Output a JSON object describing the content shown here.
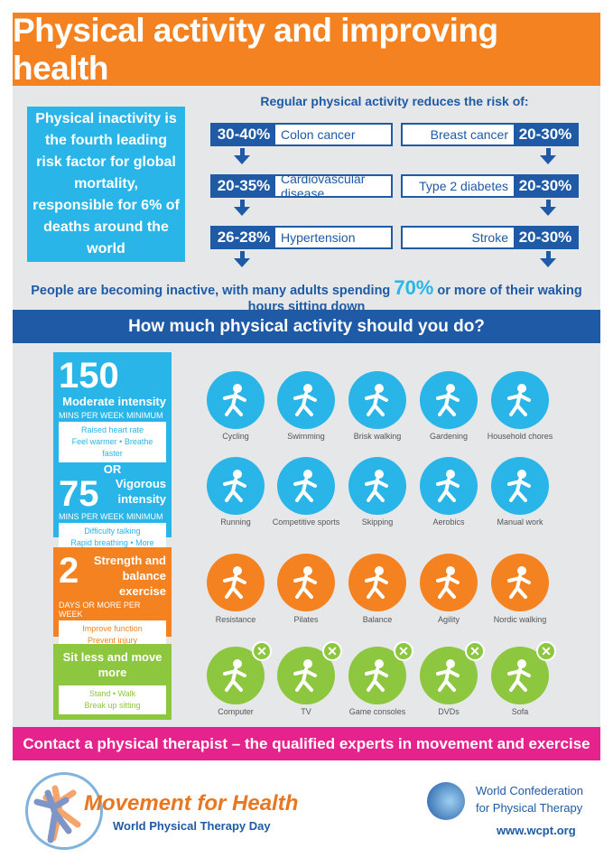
{
  "title": "Physical activity and improving health",
  "left_box": "Physical inactivity is the fourth leading risk factor for global mortality, responsible for 6% of deaths around the world",
  "risk_header": "Regular physical activity reduces the risk of:",
  "risks_left": [
    {
      "pct": "30-40%",
      "name": "Colon cancer"
    },
    {
      "pct": "20-35%",
      "name": "Cardiovascular disease"
    },
    {
      "pct": "26-28%",
      "name": "Hypertension"
    }
  ],
  "risks_right": [
    {
      "pct": "20-30%",
      "name": "Breast cancer"
    },
    {
      "pct": "20-30%",
      "name": "Type 2 diabetes"
    },
    {
      "pct": "20-30%",
      "name": "Stroke"
    }
  ],
  "inactive": {
    "pre": "People are becoming inactive, with many adults spending ",
    "big": "70%",
    "post": " or more of their waking hours sitting down"
  },
  "section_title": "How much physical activity should you do?",
  "moderate": {
    "num": "150",
    "label": "Moderate intensity",
    "sub": "MINS PER WEEK MINIMUM",
    "l1": "Raised heart rate",
    "l2": "Feel warmer  •  Breathe faster"
  },
  "or": "OR",
  "vigorous": {
    "num": "75",
    "label": "Vigorous intensity",
    "sub": "MINS PER WEEK MINIMUM",
    "l1": "Difficulty talking",
    "l2": "Rapid breathing  •  More effort"
  },
  "strength": {
    "num": "2",
    "label": "Strength and balance exercise",
    "sub": "DAYS OR MORE PER WEEK",
    "l1": "Improve function",
    "l2": "Prevent injury"
  },
  "sitless": {
    "label": "Sit less and move more",
    "l1": "Stand  •  Walk",
    "l2": "Break up sitting"
  },
  "icon_rows": [
    {
      "color": "#29b5e8",
      "items": [
        "Cycling",
        "Swimming",
        "Brisk walking",
        "Gardening",
        "Household chores"
      ]
    },
    {
      "color": "#29b5e8",
      "items": [
        "Running",
        "Competitive sports",
        "Skipping",
        "Aerobics",
        "Manual work"
      ]
    },
    {
      "color": "#f58220",
      "items": [
        "Resistance",
        "Pilates",
        "Balance",
        "Agility",
        "Nordic walking"
      ]
    },
    {
      "color": "#8dc63f",
      "items": [
        "Computer",
        "TV",
        "Game consoles",
        "DVDs",
        "Sofa"
      ]
    }
  ],
  "contact": "Contact a physical therapist –  the qualified experts in movement and exercise",
  "footer": {
    "brand": "Movement for Health",
    "day": "World Physical Therapy Day",
    "org1": "World Confederation",
    "org2": "for Physical Therapy",
    "url": "www.wcpt.org"
  }
}
